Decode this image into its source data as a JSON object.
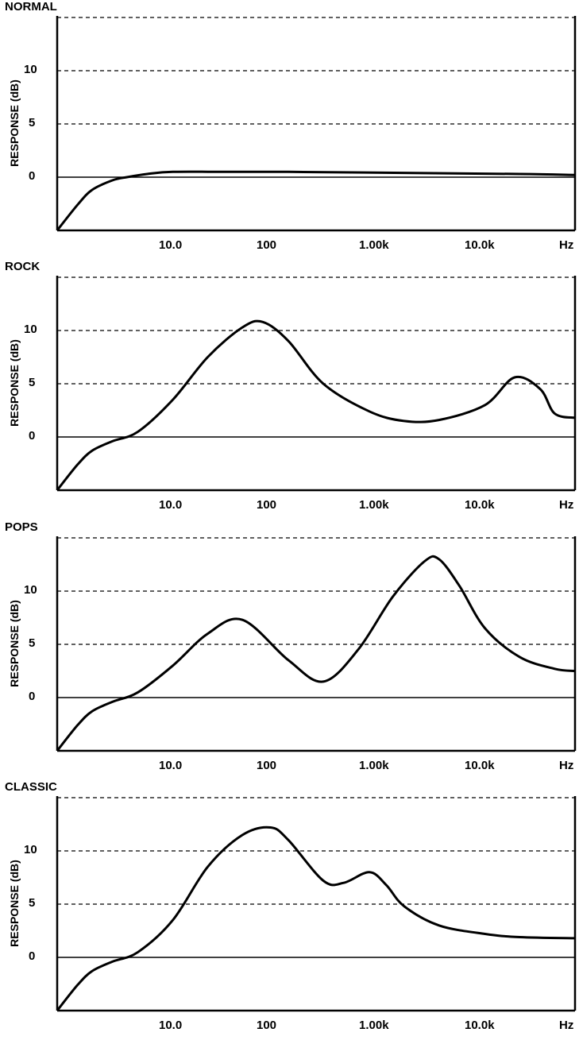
{
  "chart_data": [
    {
      "type": "line",
      "title": "NORMAL",
      "ylabel": "RESPONSE (dB)",
      "xlabel": "Hz",
      "x_scale": "log",
      "x_ticks": [
        "10.0",
        "100",
        "1.00k",
        "10.0k"
      ],
      "y_ticks": [
        "0",
        "5",
        "10"
      ],
      "ylim": [
        -5,
        15
      ],
      "xlim": [
        1,
        30000
      ],
      "grid": "dashed at 5, 10, 15 dB",
      "series": [
        {
          "x": [
            1,
            1.5,
            2,
            3,
            4,
            6,
            10,
            30,
            100,
            1000,
            10000,
            30000
          ],
          "y": [
            -5,
            -2.6,
            -1.2,
            -0.3,
            0.0,
            0.3,
            0.5,
            0.5,
            0.5,
            0.4,
            0.3,
            0.2
          ]
        }
      ]
    },
    {
      "type": "line",
      "title": "ROCK",
      "ylabel": "RESPONSE (dB)",
      "xlabel": "Hz",
      "x_scale": "log",
      "x_ticks": [
        "10.0",
        "100",
        "1.00k",
        "10.0k"
      ],
      "y_ticks": [
        "0",
        "5",
        "10"
      ],
      "ylim": [
        -5,
        15
      ],
      "xlim": [
        1,
        30000
      ],
      "grid": "dashed at 5, 10, 15 dB",
      "series": [
        {
          "x": [
            1,
            1.5,
            2,
            3,
            5,
            10,
            20,
            40,
            60,
            100,
            200,
            500,
            1000,
            2000,
            5000,
            9000,
            15000,
            20000,
            30000
          ],
          "y": [
            -5,
            -2.6,
            -1.3,
            -0.4,
            0.5,
            3.5,
            7.5,
            10.3,
            10.8,
            9,
            5,
            2.4,
            1.5,
            1.6,
            3,
            5.6,
            4.5,
            2.2,
            1.8
          ]
        }
      ]
    },
    {
      "type": "line",
      "title": "POPS",
      "ylabel": "RESPONSE (dB)",
      "xlabel": "Hz",
      "x_scale": "log",
      "x_ticks": [
        "10.0",
        "100",
        "1.00k",
        "10.0k"
      ],
      "y_ticks": [
        "0",
        "5",
        "10"
      ],
      "ylim": [
        -5,
        15
      ],
      "xlim": [
        1,
        30000
      ],
      "grid": "dashed at 5, 10, 15 dB",
      "series": [
        {
          "x": [
            1,
            1.5,
            2,
            3,
            5,
            10,
            20,
            40,
            100,
            200,
            400,
            800,
            1500,
            2000,
            3000,
            5000,
            10000,
            20000,
            30000
          ],
          "y": [
            -5,
            -2.6,
            -1.3,
            -0.4,
            0.5,
            3,
            6,
            7.3,
            3.5,
            1.5,
            4.5,
            9.5,
            12.8,
            13.0,
            10.5,
            6.5,
            3.8,
            2.7,
            2.5
          ]
        }
      ]
    },
    {
      "type": "line",
      "title": "CLASSIC",
      "ylabel": "RESPONSE (dB)",
      "xlabel": "Hz",
      "x_scale": "log",
      "x_ticks": [
        "10.0",
        "100",
        "1.00k",
        "10.0k"
      ],
      "y_ticks": [
        "0",
        "5",
        "10"
      ],
      "ylim": [
        -5,
        15
      ],
      "xlim": [
        1,
        30000
      ],
      "grid": "dashed at 5, 10, 15 dB",
      "series": [
        {
          "x": [
            1,
            1.5,
            2,
            3,
            5,
            10,
            20,
            40,
            70,
            100,
            200,
            300,
            500,
            700,
            1000,
            2000,
            5000,
            10000,
            30000
          ],
          "y": [
            -5,
            -2.6,
            -1.3,
            -0.4,
            0.5,
            3.5,
            8.5,
            11.5,
            12.2,
            11,
            7.2,
            7.0,
            8.0,
            6.8,
            4.8,
            3.0,
            2.2,
            1.9,
            1.8
          ]
        }
      ]
    }
  ]
}
